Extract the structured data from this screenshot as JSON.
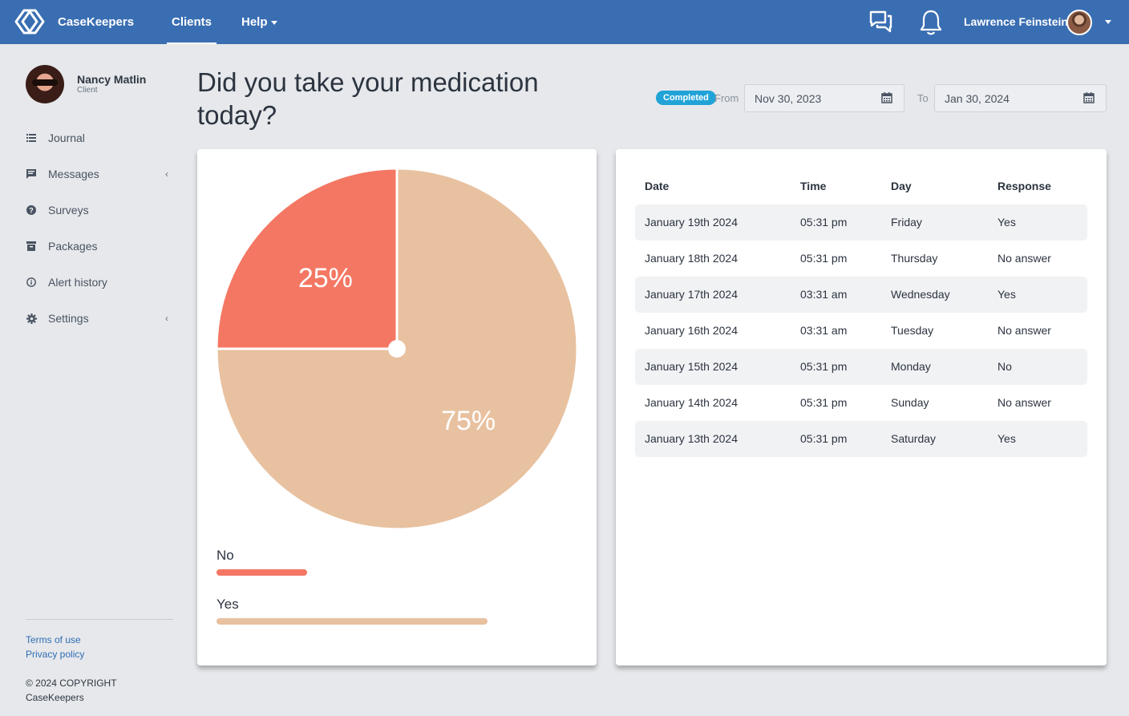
{
  "header": {
    "brand": "CaseKeepers",
    "nav": {
      "clients": "Clients",
      "help": "Help"
    },
    "user_name": "Lawrence Feinstein",
    "icons": {
      "messages": "chat-bubbles-icon",
      "notifications": "bell-icon",
      "caret": "caret-down-icon"
    }
  },
  "sidebar": {
    "client_name": "Nancy Matlin",
    "client_role": "Client",
    "items": [
      {
        "label": "Journal",
        "icon": "list-icon",
        "expandable": false
      },
      {
        "label": "Messages",
        "icon": "message-icon",
        "expandable": true
      },
      {
        "label": "Surveys",
        "icon": "question-circle-icon",
        "expandable": false
      },
      {
        "label": "Packages",
        "icon": "archive-icon",
        "expandable": false
      },
      {
        "label": "Alert history",
        "icon": "info-circle-icon",
        "expandable": false
      },
      {
        "label": "Settings",
        "icon": "gear-icon",
        "expandable": true
      }
    ],
    "terms": "Terms of use",
    "privacy": "Privacy policy",
    "copyright_line1": "© 2024 COPYRIGHT",
    "copyright_line2": "CaseKeepers"
  },
  "main": {
    "title": "Did you take your medication today?",
    "status_badge": "Completed",
    "from_label": "From",
    "from_value": "Nov 30, 2023",
    "to_label": "To",
    "to_value": "Jan 30, 2024"
  },
  "chart_data": {
    "type": "pie",
    "categories": [
      "No",
      "Yes"
    ],
    "values": [
      25,
      75
    ],
    "labels": [
      "25%",
      "75%"
    ],
    "colors": [
      "#f47763",
      "#e8c1a0"
    ],
    "legend_placement": "bottom"
  },
  "table": {
    "headers": [
      "Date",
      "Time",
      "Day",
      "Response"
    ],
    "rows": [
      [
        "January 19th 2024",
        "05:31 pm",
        "Friday",
        "Yes"
      ],
      [
        "January 18th 2024",
        "05:31 pm",
        "Thursday",
        "No answer"
      ],
      [
        "January 17th 2024",
        "03:31 am",
        "Wednesday",
        "Yes"
      ],
      [
        "January 16th 2024",
        "03:31 am",
        "Tuesday",
        "No answer"
      ],
      [
        "January 15th 2024",
        "05:31 pm",
        "Monday",
        "No"
      ],
      [
        "January 14th 2024",
        "05:31 pm",
        "Sunday",
        "No answer"
      ],
      [
        "January 13th 2024",
        "05:31 pm",
        "Saturday",
        "Yes"
      ]
    ]
  },
  "colors": {
    "topbar": "#3a6eb2",
    "badge": "#21a3d8",
    "link": "#2f6db5"
  }
}
